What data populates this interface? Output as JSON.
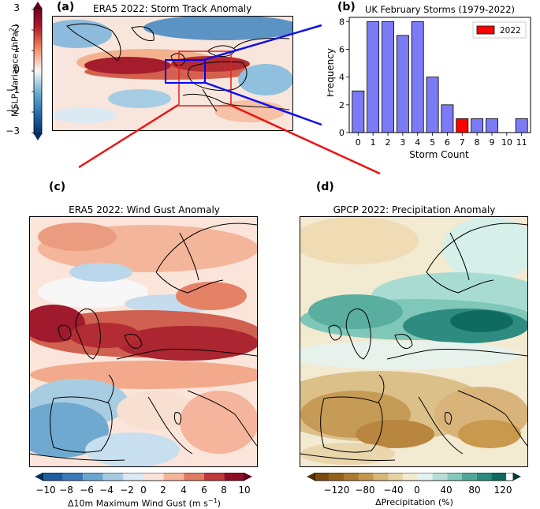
{
  "panel_a": {
    "letter": "(a)",
    "title": "ERA5 2022: Storm Track Anomaly",
    "colorbar_label": "MSLP Variance (hPa",
    "colorbar_label_sup": "2",
    "colorbar_label_end": ")",
    "colorbar_ticks": [
      "3",
      "2",
      "1",
      "0",
      "−1",
      "−2",
      "−3"
    ],
    "colorbar_range": [
      -3,
      3
    ]
  },
  "panel_b": {
    "letter": "(b)",
    "legend_label": "2022",
    "colors": {
      "bar": "#7b7bf5",
      "highlight": "#ff0000"
    }
  },
  "panel_c": {
    "letter": "(c)",
    "title": "ERA5 2022: Wind Gust Anomaly",
    "colorbar_label": "Δ10m Maximum Wind Gust (m s",
    "colorbar_label_sup": "−1",
    "colorbar_label_end": ")",
    "colorbar_ticks": [
      "−10",
      "−8",
      "−6",
      "−4",
      "−2",
      "0",
      "2",
      "4",
      "6",
      "8",
      "10"
    ],
    "colorbar_range": [
      -10,
      10
    ]
  },
  "panel_d": {
    "letter": "(d)",
    "title": "GPCP 2022: Precipitation Anomaly",
    "colorbar_label": "ΔPrecipitation (%)",
    "colorbar_ticks": [
      "−120",
      "−80",
      "−40",
      "0",
      "40",
      "80",
      "120"
    ],
    "colorbar_range": [
      -140,
      140
    ]
  },
  "colors": {
    "box_blue": "#0000ff",
    "box_red": "#e02020",
    "connector_blue": "#1010ee",
    "connector_red": "#ee1111"
  },
  "chart_data": [
    {
      "type": "bar",
      "title": "UK February Storms (1979-2022)",
      "xlabel": "Storm Count",
      "ylabel": "Frequency",
      "categories": [
        "0",
        "1",
        "2",
        "3",
        "4",
        "5",
        "6",
        "7",
        "8",
        "9",
        "10",
        "11"
      ],
      "values": [
        3,
        8,
        8,
        7,
        8,
        4,
        2,
        1,
        1,
        1,
        0,
        1
      ],
      "highlight_category": "7",
      "legend": "2022",
      "ylim": [
        0,
        8.3
      ],
      "yticks": [
        0,
        2,
        4,
        6,
        8
      ]
    }
  ]
}
